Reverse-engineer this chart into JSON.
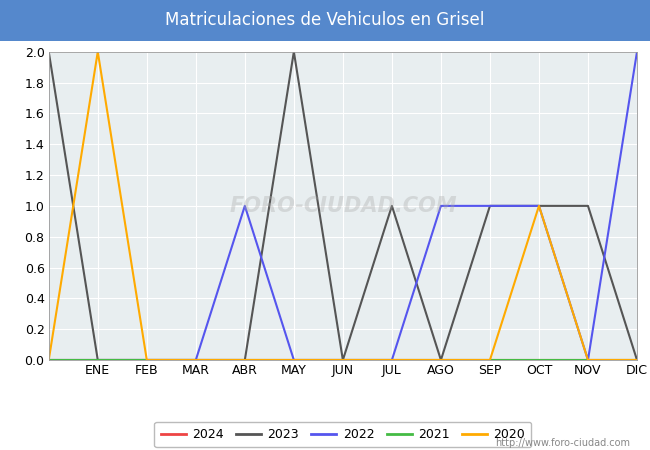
{
  "title": "Matriculaciones de Vehiculos en Grisel",
  "title_color": "#ffffff",
  "title_bg_color": "#5588cc",
  "months": [
    0,
    1,
    2,
    3,
    4,
    5,
    6,
    7,
    8,
    9,
    10,
    11,
    12
  ],
  "month_labels": [
    "ENE",
    "FEB",
    "MAR",
    "ABR",
    "MAY",
    "JUN",
    "JUL",
    "AGO",
    "SEP",
    "OCT",
    "NOV",
    "DIC"
  ],
  "series": {
    "2024": {
      "color": "#ee4444",
      "data": [
        0,
        0,
        0,
        0,
        0,
        0,
        0,
        0,
        0,
        0,
        0,
        0,
        0
      ]
    },
    "2023": {
      "color": "#555555",
      "data": [
        2,
        0,
        0,
        0,
        0,
        2,
        0,
        1,
        0,
        1,
        1,
        1,
        0
      ]
    },
    "2022": {
      "color": "#5555ee",
      "data": [
        0,
        0,
        0,
        0,
        1,
        0,
        0,
        0,
        1,
        1,
        1,
        0,
        2
      ]
    },
    "2021": {
      "color": "#44bb44",
      "data": [
        0,
        0,
        0,
        0,
        0,
        0,
        0,
        0,
        0,
        0,
        0,
        0,
        0
      ]
    },
    "2020": {
      "color": "#ffaa00",
      "data": [
        0,
        2,
        0,
        0,
        0,
        0,
        0,
        0,
        0,
        0,
        1,
        0,
        0
      ]
    }
  },
  "ylim": [
    0,
    2.0
  ],
  "yticks": [
    0.0,
    0.2,
    0.4,
    0.6,
    0.8,
    1.0,
    1.2,
    1.4,
    1.6,
    1.8,
    2.0
  ],
  "legend_order": [
    "2024",
    "2023",
    "2022",
    "2021",
    "2020"
  ],
  "fig_bg_color": "#ffffff",
  "plot_bg_color": "#e8eef0",
  "grid_color": "#ffffff",
  "watermark": "http://www.foro-ciudad.com"
}
